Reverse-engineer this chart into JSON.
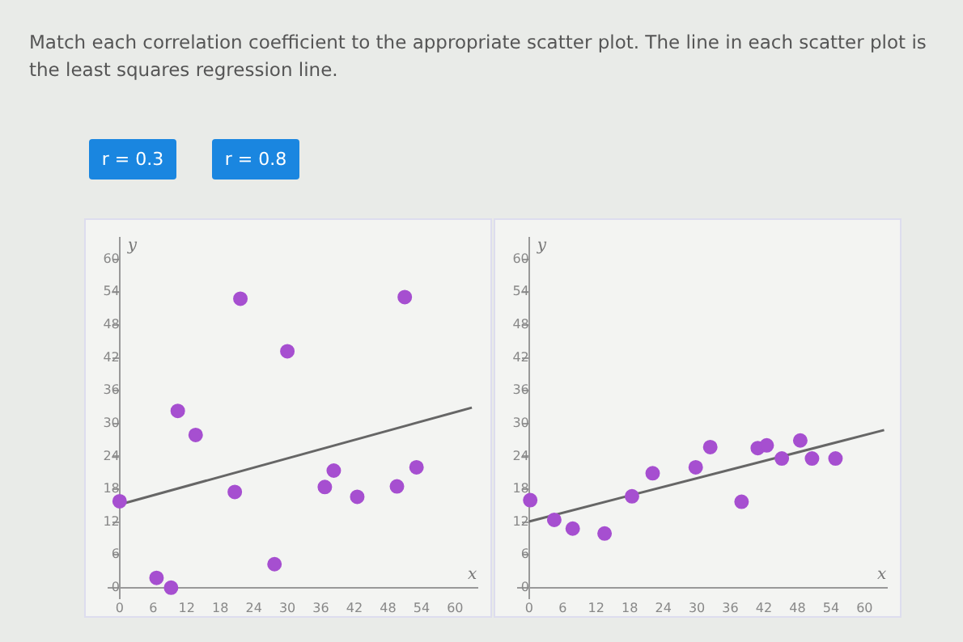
{
  "chart_data": [
    {
      "type": "other",
      "title": "Match each correlation coefficient to the appropriate scatter plot. The line in each scatter plot is the least squares regression line.",
      "annotations": [
        "r = 0.3",
        "r = 0.8"
      ]
    },
    {
      "type": "scatter",
      "xlabel": "x",
      "ylabel": "y",
      "xlim": [
        -2,
        64
      ],
      "ylim": [
        -2,
        64
      ],
      "xticks": [
        0,
        6,
        12,
        18,
        24,
        30,
        36,
        42,
        48,
        54,
        60
      ],
      "yticks": [
        0,
        6,
        12,
        18,
        24,
        30,
        36,
        42,
        48,
        54,
        60
      ],
      "grid": false,
      "legend": false,
      "series": [
        {
          "type": "scatter",
          "marker": "circle",
          "color": "#a64fd0",
          "x": [
            0,
            6.6,
            9.2,
            10.4,
            13.6,
            20.6,
            21.6,
            27.7,
            30,
            36.7,
            38.3,
            42.5,
            49.6,
            51,
            53.1
          ],
          "values": [
            15.8,
            1.8,
            0,
            32.3,
            27.9,
            17.5,
            52.8,
            4.3,
            43.2,
            18.4,
            21.4,
            16.6,
            18.5,
            53.1,
            22
          ]
        },
        {
          "type": "line",
          "marker": "none",
          "color": "#666666",
          "x": [
            0,
            63
          ],
          "values": [
            15.2,
            32.9
          ]
        }
      ]
    },
    {
      "type": "scatter",
      "xlabel": "x",
      "ylabel": "y",
      "xlim": [
        -2,
        64
      ],
      "ylim": [
        -2,
        64
      ],
      "xticks": [
        0,
        6,
        12,
        18,
        24,
        30,
        36,
        42,
        48,
        54,
        60
      ],
      "yticks": [
        0,
        6,
        12,
        18,
        24,
        30,
        36,
        42,
        48,
        54,
        60
      ],
      "grid": false,
      "legend": false,
      "series": [
        {
          "type": "scatter",
          "marker": "circle",
          "color": "#a64fd0",
          "x": [
            0.2,
            4.5,
            7.8,
            13.5,
            18.4,
            22.1,
            29.8,
            32.4,
            38,
            40.9,
            42.5,
            45.2,
            48.5,
            50.6,
            54.8
          ],
          "values": [
            16,
            12.4,
            10.8,
            9.9,
            16.7,
            20.9,
            22,
            25.7,
            15.7,
            25.5,
            26,
            23.6,
            26.9,
            23.6,
            23.6
          ]
        },
        {
          "type": "line",
          "marker": "none",
          "color": "#666666",
          "x": [
            0,
            63.5
          ],
          "values": [
            12.1,
            28.8
          ]
        }
      ]
    }
  ]
}
